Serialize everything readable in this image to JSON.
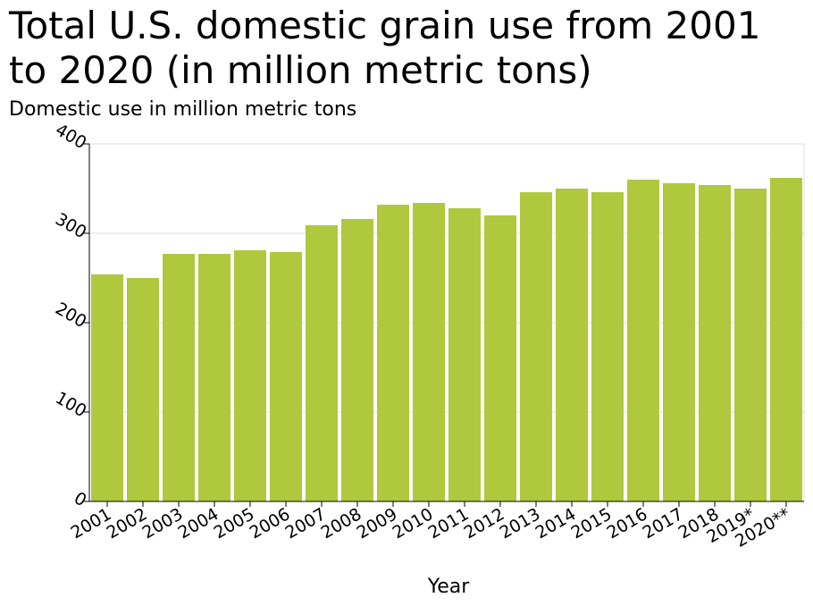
{
  "chart_data": {
    "type": "bar",
    "title": "Total U.S. domestic grain use from 2001 to 2020 (in million metric tons)",
    "ylabel": "Domestic use in million metric tons",
    "xlabel": "Year",
    "categories": [
      "2001",
      "2002",
      "2003",
      "2004",
      "2005",
      "2006",
      "2007",
      "2008",
      "2009",
      "2010",
      "2011",
      "2012",
      "2013",
      "2014",
      "2015",
      "2016",
      "2017",
      "2018",
      "2019*",
      "2020**"
    ],
    "values": [
      254,
      250,
      277,
      277,
      281,
      279,
      309,
      316,
      332,
      334,
      328,
      320,
      346,
      350,
      346,
      360,
      356,
      354,
      350,
      362
    ],
    "ylim": [
      0,
      400
    ],
    "yticks": [
      0,
      100,
      200,
      300,
      400
    ],
    "grid": true,
    "colors": {
      "bar": "#afc83e",
      "grid": "#dcdcdc",
      "axis": "#000000"
    }
  }
}
